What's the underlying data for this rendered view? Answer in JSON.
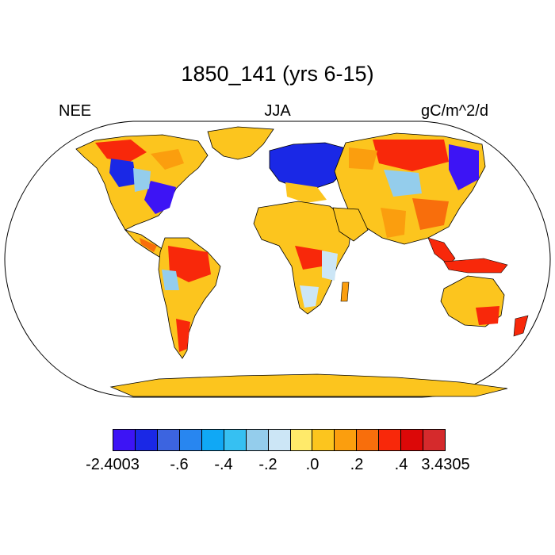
{
  "title": "1850_141 (yrs 6-15)",
  "left_label": "NEE",
  "center_label": "JJA",
  "right_label": "gC/m^2/d",
  "colorbar": {
    "colors": [
      "#3d14f5",
      "#1a28e6",
      "#3c64e0",
      "#2886f0",
      "#10a8f5",
      "#36c0f2",
      "#94cdec",
      "#cce6f6",
      "#ffea6a",
      "#fcc51e",
      "#fb9e0e",
      "#f86e0c",
      "#f8280a",
      "#dc0808",
      "#d52a2c"
    ],
    "ticks": [
      {
        "label": "-2.4003",
        "boundary": 0
      },
      {
        "label": "-.6",
        "boundary": 3
      },
      {
        "label": "-.4",
        "boundary": 5
      },
      {
        "label": "-.2",
        "boundary": 7
      },
      {
        "label": ".0",
        "boundary": 9
      },
      {
        "label": ".2",
        "boundary": 11
      },
      {
        "label": ".4",
        "boundary": 13
      },
      {
        "label": "3.4305",
        "boundary": 15
      }
    ]
  },
  "map": {
    "projection": "Robinson",
    "land_colors": {
      "ocean": "#ffffff",
      "coast": "#000000",
      "dominant": "#fcc51e"
    }
  }
}
